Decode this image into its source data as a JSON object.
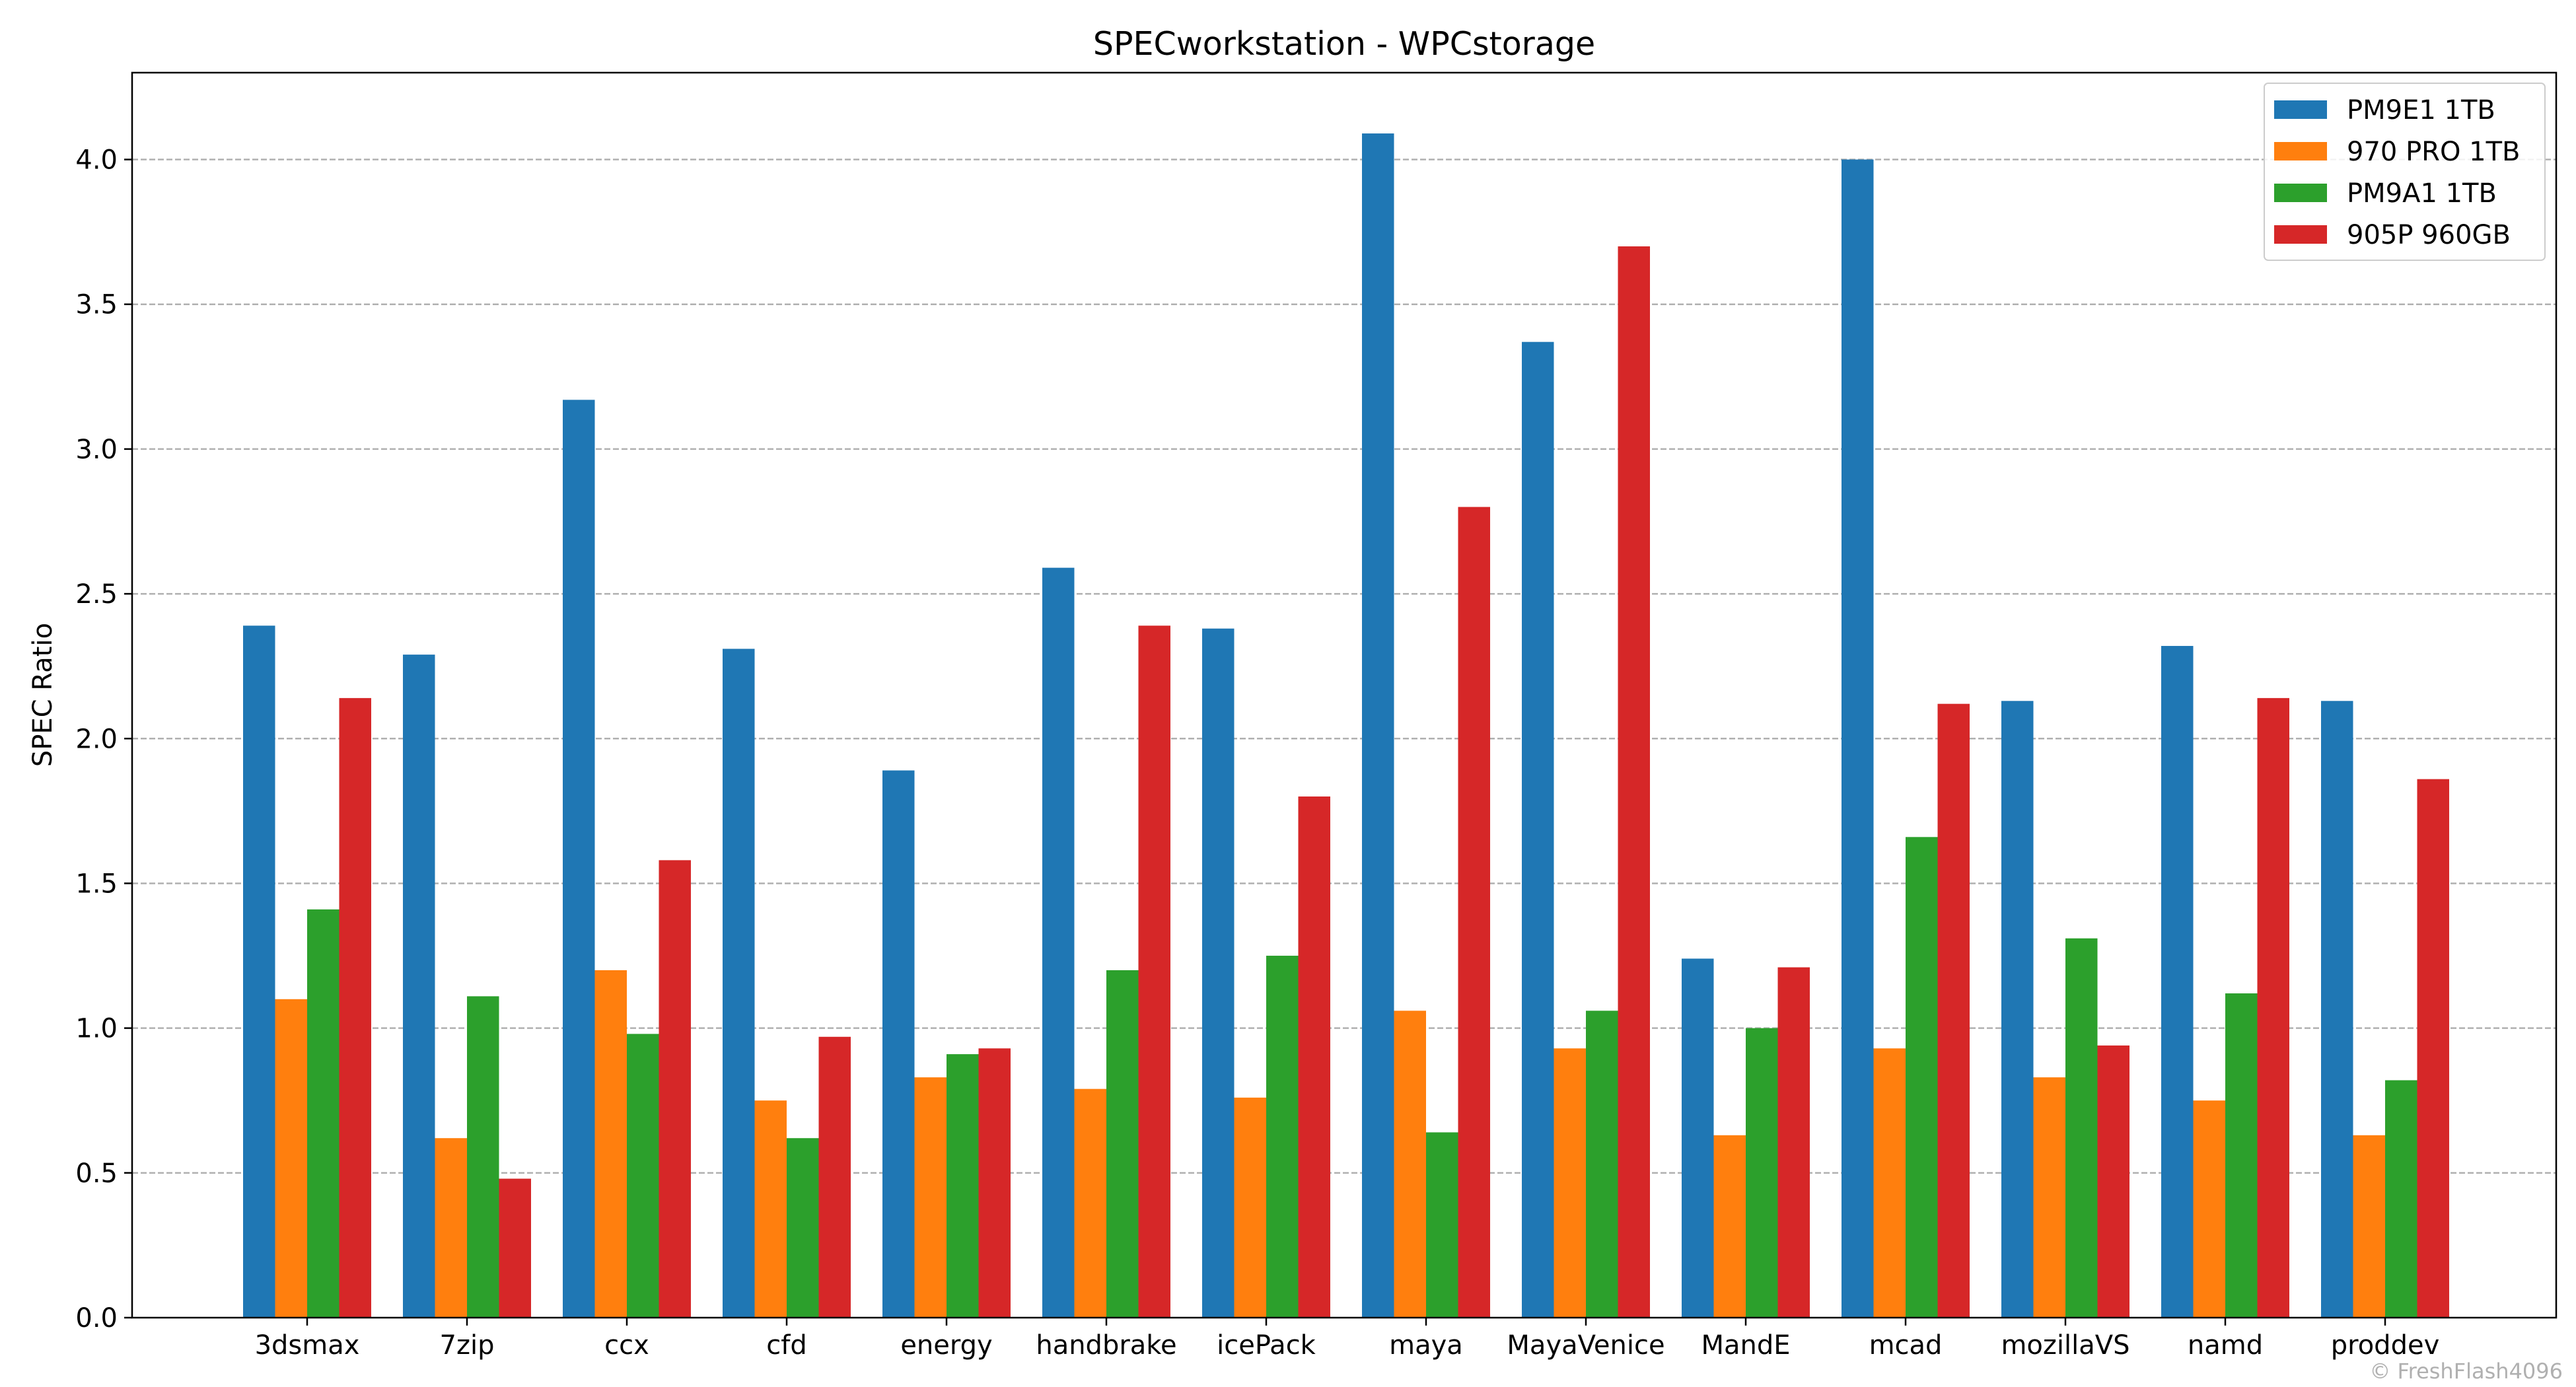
{
  "chart_data": {
    "type": "bar",
    "title": "SPECworkstation - WPCstorage",
    "xlabel": "",
    "ylabel": "SPEC Ratio",
    "ylim": [
      0,
      4.3
    ],
    "yticks": [
      0.0,
      0.5,
      1.0,
      1.5,
      2.0,
      2.5,
      3.0,
      3.5,
      4.0
    ],
    "ytick_labels": [
      "0.0",
      "0.5",
      "1.0",
      "1.5",
      "2.0",
      "2.5",
      "3.0",
      "3.5",
      "4.0"
    ],
    "grid": "horizontal-dashed",
    "legend_position": "top-right",
    "categories": [
      "3dsmax",
      "7zip",
      "ccx",
      "cfd",
      "energy",
      "handbrake",
      "icePack",
      "maya",
      "MayaVenice",
      "MandE",
      "mcad",
      "mozillaVS",
      "namd",
      "proddev"
    ],
    "series": [
      {
        "name": "PM9E1 1TB",
        "color": "#1f77b4",
        "values": [
          2.39,
          2.29,
          3.17,
          2.31,
          1.89,
          2.59,
          2.38,
          4.09,
          3.37,
          1.24,
          4.0,
          2.13,
          2.32,
          2.13
        ]
      },
      {
        "name": "970 PRO 1TB",
        "color": "#ff7f0e",
        "values": [
          1.1,
          0.62,
          1.2,
          0.75,
          0.83,
          0.79,
          0.76,
          1.06,
          0.93,
          0.63,
          0.93,
          0.83,
          0.75,
          0.63
        ]
      },
      {
        "name": "PM9A1 1TB",
        "color": "#2ca02c",
        "values": [
          1.41,
          1.11,
          0.98,
          0.62,
          0.91,
          1.2,
          1.25,
          0.64,
          1.06,
          1.0,
          1.66,
          1.31,
          1.12,
          0.82
        ]
      },
      {
        "name": "905P 960GB",
        "color": "#d62728",
        "values": [
          2.14,
          0.48,
          1.58,
          0.97,
          0.93,
          2.39,
          1.8,
          2.8,
          3.7,
          1.21,
          2.12,
          0.94,
          2.14,
          1.86
        ]
      }
    ]
  },
  "watermark": "© FreshFlash4096"
}
